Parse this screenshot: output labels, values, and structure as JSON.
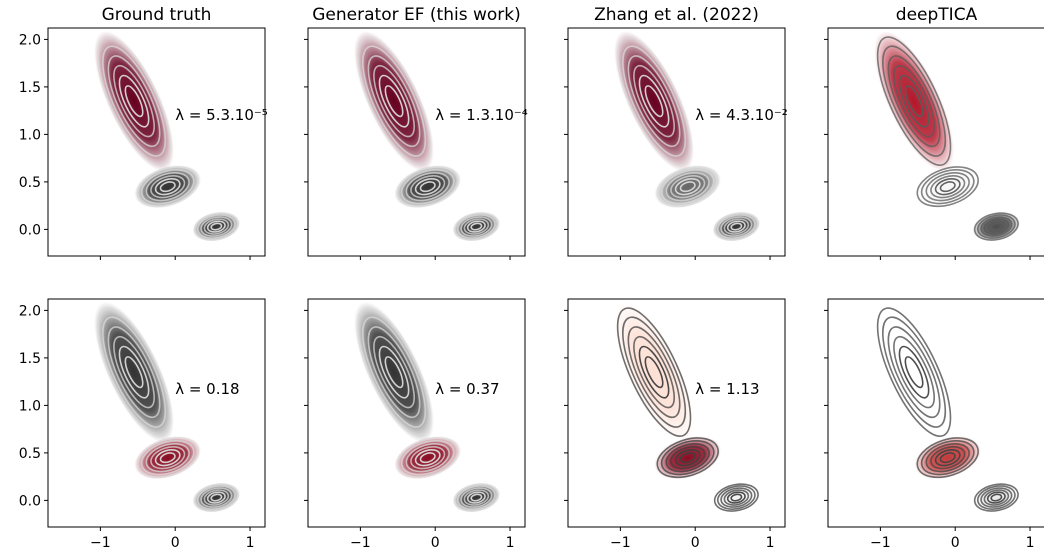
{
  "figure": {
    "column_titles": [
      "Ground truth",
      "Generator EF (this work)",
      "Zhang et al. (2022)",
      "deepTICA"
    ]
  },
  "chart_data": {
    "type": "contour",
    "xlim": [
      -1.7,
      1.2
    ],
    "ylim": [
      -0.28,
      2.12
    ],
    "xticks": [
      -1,
      0,
      1
    ],
    "xtick_labels": [
      "−1",
      "0",
      "1"
    ],
    "yticks": [
      0.0,
      0.5,
      1.0,
      1.5,
      2.0
    ],
    "ytick_labels": [
      "0.0",
      "0.5",
      "1.0",
      "1.5",
      "2.0"
    ],
    "colors": {
      "dark_red": "#67001f",
      "mid_red": "#d6604d",
      "light": "#fddbc7",
      "gray_dark": "#3a3a3a",
      "contour": "#c8c8c8"
    },
    "basins": [
      {
        "name": "A",
        "cx": -0.55,
        "cy": 1.35,
        "sx": 0.3,
        "sy": 0.7,
        "rot": -25
      },
      {
        "name": "B",
        "cx": -0.1,
        "cy": 0.45,
        "sx": 0.4,
        "sy": 0.18,
        "rot": -18
      },
      {
        "name": "C",
        "cx": 0.55,
        "cy": 0.03,
        "sx": 0.28,
        "sy": 0.13,
        "rot": -12
      }
    ],
    "panels": [
      {
        "row": 0,
        "col": 0,
        "lambda_label": "λ = 5.3.10⁻⁵",
        "lambda_x": 0.0,
        "lambda_y": 1.15,
        "basin_colors": [
          "#67001f",
          "#333333",
          "#333333"
        ],
        "contour_color": "#d9d9d9"
      },
      {
        "row": 0,
        "col": 1,
        "lambda_label": "λ = 1.3.10⁻⁴",
        "lambda_x": 0.0,
        "lambda_y": 1.15,
        "basin_colors": [
          "#67001f",
          "#333333",
          "#333333"
        ],
        "contour_color": "#d9d9d9"
      },
      {
        "row": 0,
        "col": 2,
        "lambda_label": "λ = 4.3.10⁻²",
        "lambda_x": 0.0,
        "lambda_y": 1.15,
        "basin_colors": [
          "#67001f",
          "#666666",
          "#333333"
        ],
        "contour_color": "#d9d9d9"
      },
      {
        "row": 0,
        "col": 3,
        "lambda_label": "",
        "lambda_x": 0.0,
        "lambda_y": 1.15,
        "basin_colors": [
          "#b2182b",
          "#f7f7f7",
          "#4d4d4d"
        ],
        "contour_color": "#5a5a5a"
      },
      {
        "row": 1,
        "col": 0,
        "lambda_label": "λ = 0.18",
        "lambda_x": 0.0,
        "lambda_y": 1.12,
        "basin_colors": [
          "#333333",
          "#8b0d22",
          "#333333"
        ],
        "contour_color": "#d9d9d9"
      },
      {
        "row": 1,
        "col": 1,
        "lambda_label": "λ = 0.37",
        "lambda_x": 0.0,
        "lambda_y": 1.12,
        "basin_colors": [
          "#333333",
          "#8b0d22",
          "#333333"
        ],
        "contour_color": "#d9d9d9"
      },
      {
        "row": 1,
        "col": 2,
        "lambda_label": "λ = 1.13",
        "lambda_x": 0.0,
        "lambda_y": 1.12,
        "basin_colors": [
          "#fde0d4",
          "#8b0d22",
          "#f2f2f2"
        ],
        "contour_color": "#3f3f3f"
      },
      {
        "row": 1,
        "col": 3,
        "lambda_label": "",
        "lambda_x": 0.0,
        "lambda_y": 1.12,
        "basin_colors": [
          "#ffffff",
          "#c23a3a",
          "#e8e8e8"
        ],
        "contour_color": "#444444"
      }
    ]
  }
}
